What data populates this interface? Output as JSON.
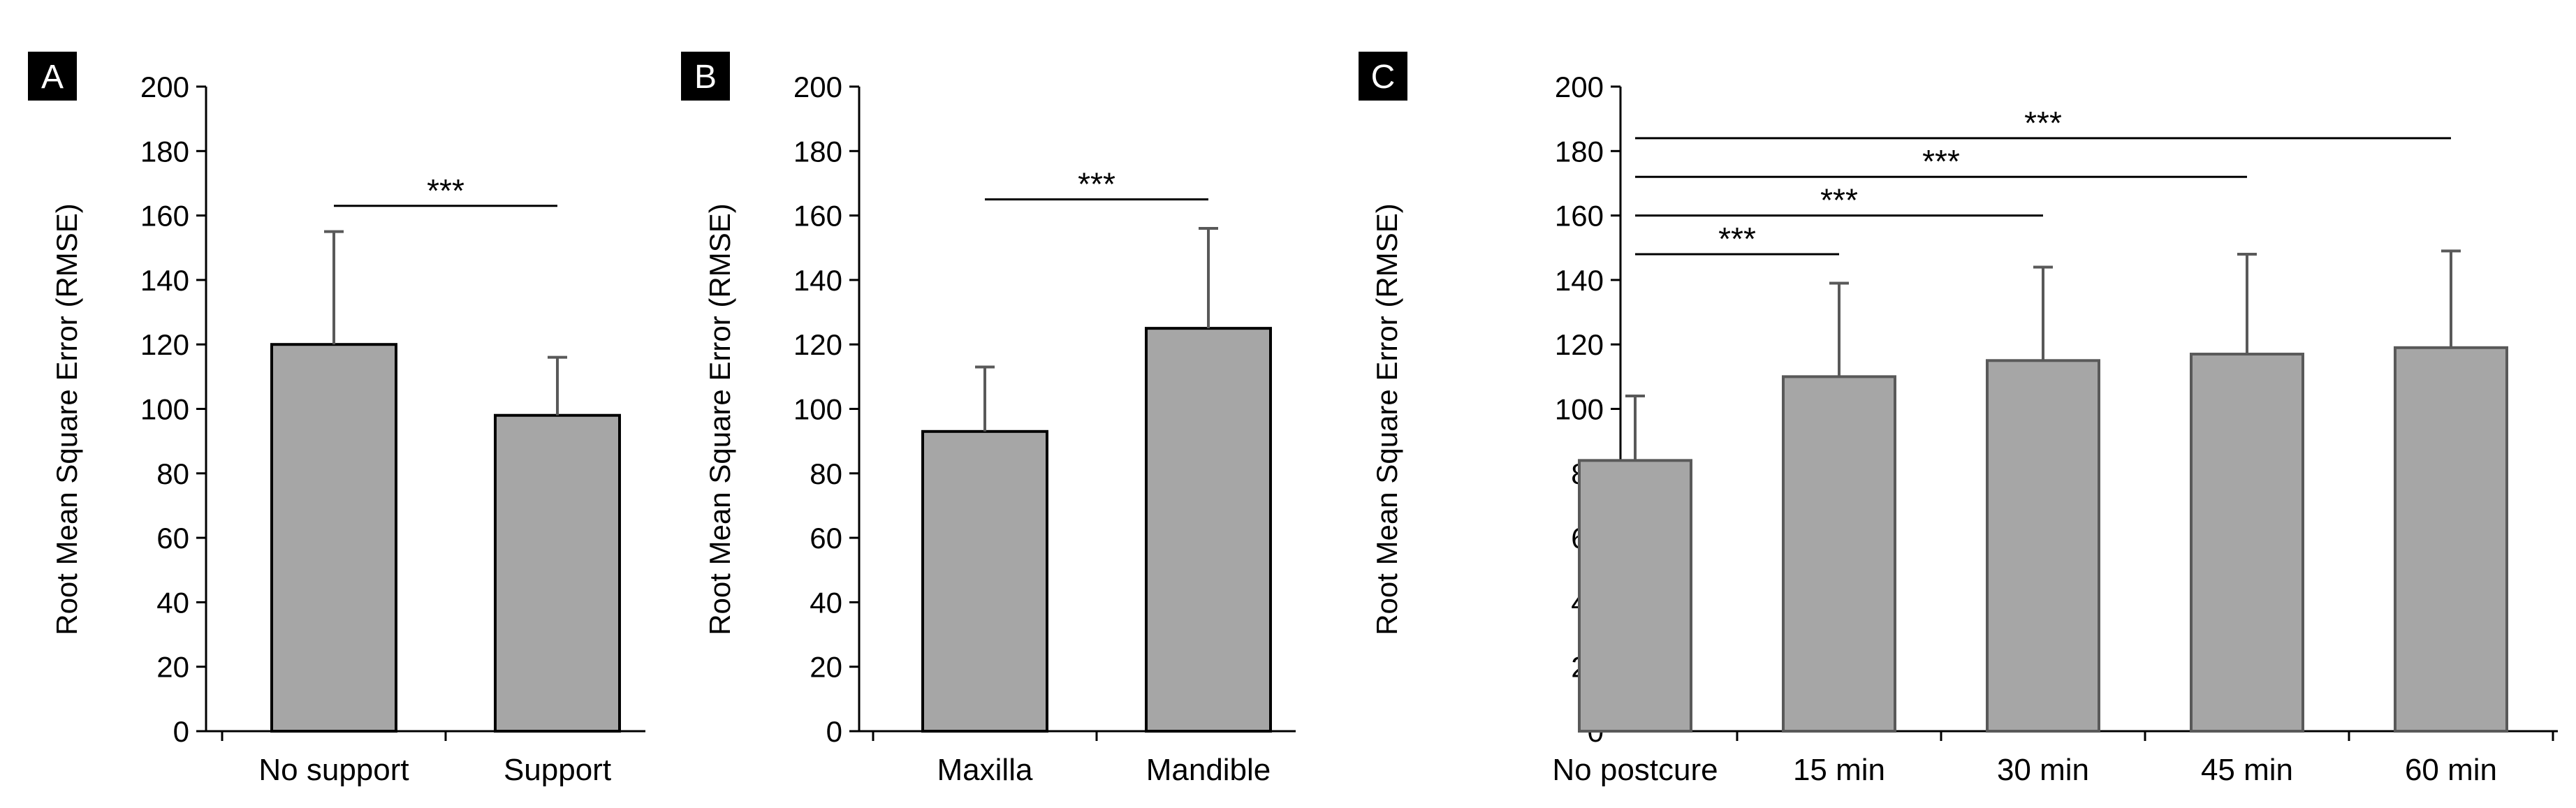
{
  "chart_data": [
    {
      "type": "bar",
      "panel_label": "A",
      "ylabel": "Root Mean Square Error (RMSE)",
      "ylim": [
        0,
        200
      ],
      "yticks": [
        0,
        20,
        40,
        60,
        80,
        100,
        120,
        140,
        160,
        180,
        200
      ],
      "categories": [
        "No support",
        "Support"
      ],
      "values": [
        120,
        98
      ],
      "errors": [
        35,
        18
      ],
      "bar_color": "#a6a6a6",
      "bar_stroke": "#000000",
      "grid": false,
      "significance": [
        {
          "from": 0,
          "to": 1,
          "label": "***",
          "y": 163
        }
      ]
    },
    {
      "type": "bar",
      "panel_label": "B",
      "ylabel": "Root Mean Square Error (RMSE)",
      "ylim": [
        0,
        200
      ],
      "yticks": [
        0,
        20,
        40,
        60,
        80,
        100,
        120,
        140,
        160,
        180,
        200
      ],
      "categories": [
        "Maxilla",
        "Mandible"
      ],
      "values": [
        93,
        125
      ],
      "errors": [
        20,
        31
      ],
      "bar_color": "#a6a6a6",
      "bar_stroke": "#000000",
      "grid": false,
      "significance": [
        {
          "from": 0,
          "to": 1,
          "label": "***",
          "y": 165
        }
      ]
    },
    {
      "type": "bar",
      "panel_label": "C",
      "ylabel": "Root Mean Square Error (RMSE)",
      "ylim": [
        0,
        200
      ],
      "yticks": [
        0,
        20,
        40,
        60,
        80,
        100,
        120,
        140,
        160,
        180,
        200
      ],
      "categories": [
        "No postcure",
        "15 min",
        "30 min",
        "45 min",
        "60 min"
      ],
      "values": [
        84,
        110,
        115,
        117,
        119
      ],
      "errors": [
        20,
        29,
        29,
        31,
        30
      ],
      "bar_color": "#a6a6a6",
      "bar_stroke": "#595959",
      "grid": false,
      "significance": [
        {
          "from": 0,
          "to": 1,
          "label": "***",
          "y": 148
        },
        {
          "from": 0,
          "to": 2,
          "label": "***",
          "y": 160
        },
        {
          "from": 0,
          "to": 3,
          "label": "***",
          "y": 172
        },
        {
          "from": 0,
          "to": 4,
          "label": "***",
          "y": 184
        }
      ]
    }
  ]
}
